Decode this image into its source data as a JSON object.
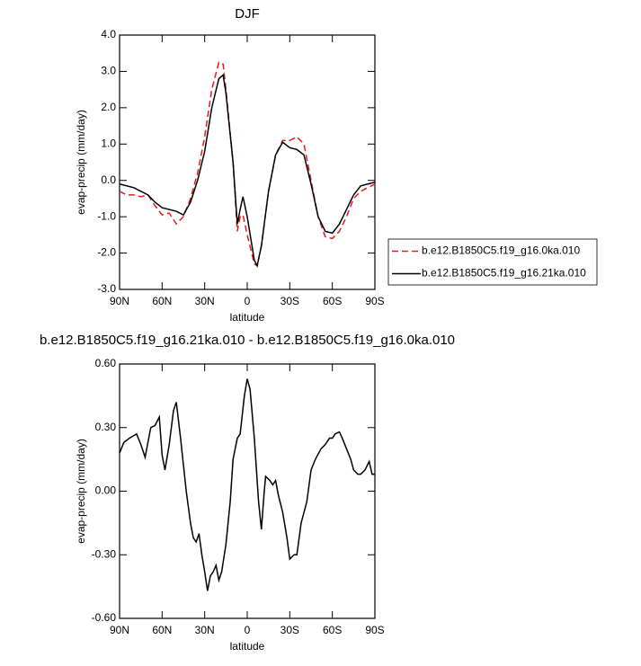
{
  "chart_data": [
    {
      "type": "line",
      "title": "DJF",
      "xlabel": "latitude",
      "ylabel": "evap-precip (mm/day)",
      "x": [
        90,
        85,
        80,
        75,
        70,
        65,
        60,
        55,
        50,
        45,
        40,
        35,
        30,
        25,
        20,
        17,
        15,
        10,
        7,
        5,
        3,
        0,
        -5,
        -7,
        -10,
        -15,
        -20,
        -25,
        -30,
        -35,
        -40,
        -45,
        -50,
        -55,
        -60,
        -65,
        -70,
        -75,
        -80,
        -85,
        -90
      ],
      "series": [
        {
          "name": "b.e12.B1850C5.f19_g16.0ka.010",
          "color": "#e41a1c",
          "dash": "dashed",
          "values": [
            -0.3,
            -0.4,
            -0.4,
            -0.45,
            -0.4,
            -0.7,
            -0.95,
            -0.9,
            -1.2,
            -1.0,
            -0.5,
            0.2,
            1.2,
            2.5,
            3.25,
            3.2,
            2.5,
            0.5,
            -1.4,
            -1.0,
            -0.95,
            -1.5,
            -2.3,
            -2.35,
            -1.8,
            -0.3,
            0.7,
            1.1,
            1.1,
            1.2,
            1.0,
            0.0,
            -1.0,
            -1.55,
            -1.6,
            -1.4,
            -1.0,
            -0.5,
            -0.3,
            -0.2,
            -0.1
          ]
        },
        {
          "name": "b.e12.B1850C5.f19_g16.21ka.010",
          "color": "#000000",
          "dash": "solid",
          "values": [
            -0.1,
            -0.15,
            -0.2,
            -0.3,
            -0.4,
            -0.6,
            -0.75,
            -0.8,
            -0.85,
            -0.95,
            -0.6,
            0.0,
            0.8,
            2.0,
            2.8,
            2.9,
            2.4,
            0.5,
            -1.2,
            -0.8,
            -0.45,
            -1.0,
            -2.2,
            -2.35,
            -1.8,
            -0.3,
            0.7,
            1.05,
            0.9,
            0.85,
            0.7,
            -0.1,
            -1.0,
            -1.4,
            -1.45,
            -1.2,
            -0.8,
            -0.4,
            -0.15,
            -0.1,
            -0.05
          ]
        }
      ],
      "xlim": [
        90,
        -90
      ],
      "xticks": [
        {
          "value": 90,
          "label": "90N"
        },
        {
          "value": 60,
          "label": "60N"
        },
        {
          "value": 30,
          "label": "30N"
        },
        0,
        {
          "value": -30,
          "label": "30S"
        },
        {
          "value": -60,
          "label": "60S"
        },
        {
          "value": -90,
          "label": "90S"
        }
      ],
      "ylim": [
        -3,
        4
      ],
      "yticks": [
        {
          "value": 4,
          "label": "4.0"
        },
        {
          "value": 3,
          "label": "3.0"
        },
        {
          "value": 2,
          "label": "2.0"
        },
        {
          "value": 1,
          "label": "1.0"
        },
        {
          "value": 0,
          "label": "0.0"
        },
        {
          "value": -1,
          "label": "-1.0"
        },
        {
          "value": -2,
          "label": "-2.0"
        },
        {
          "value": -3,
          "label": "-3.0"
        }
      ],
      "legend": "right"
    },
    {
      "type": "line",
      "title": "b.e12.B1850C5.f19_g16.21ka.010 - b.e12.B1850C5.f19_g16.0ka.010",
      "xlabel": "latitude",
      "ylabel": "evap-precip (mm/day)",
      "x": [
        90,
        87,
        83,
        78,
        75,
        72,
        68,
        65,
        62,
        60,
        58,
        55,
        52,
        50,
        47,
        43,
        40,
        38,
        36,
        34,
        32,
        30,
        28,
        26,
        24,
        22,
        20,
        18,
        15,
        12,
        10,
        7,
        5,
        2,
        0,
        -2,
        -5,
        -8,
        -10,
        -12,
        -13,
        -16,
        -18,
        -20,
        -22,
        -25,
        -28,
        -30,
        -33,
        -35,
        -38,
        -42,
        -45,
        -48,
        -52,
        -55,
        -58,
        -60,
        -62,
        -65,
        -67,
        -70,
        -73,
        -75,
        -78,
        -80,
        -83,
        -86,
        -88,
        -90
      ],
      "values": [
        0.18,
        0.23,
        0.25,
        0.27,
        0.22,
        0.16,
        0.3,
        0.31,
        0.35,
        0.17,
        0.1,
        0.22,
        0.38,
        0.42,
        0.25,
        0.0,
        -0.15,
        -0.22,
        -0.24,
        -0.2,
        -0.3,
        -0.38,
        -0.47,
        -0.4,
        -0.38,
        -0.35,
        -0.42,
        -0.38,
        -0.25,
        -0.05,
        0.15,
        0.25,
        0.27,
        0.45,
        0.53,
        0.48,
        0.25,
        -0.05,
        -0.18,
        0.0,
        0.07,
        0.05,
        0.03,
        0.05,
        -0.02,
        -0.1,
        -0.22,
        -0.32,
        -0.3,
        -0.3,
        -0.15,
        -0.05,
        0.1,
        0.15,
        0.2,
        0.22,
        0.25,
        0.25,
        0.27,
        0.28,
        0.25,
        0.2,
        0.15,
        0.1,
        0.08,
        0.08,
        0.1,
        0.14,
        0.08,
        0.08
      ],
      "color": "#000000",
      "xlim": [
        90,
        -90
      ],
      "xticks": [
        {
          "value": 90,
          "label": "90N"
        },
        {
          "value": 60,
          "label": "60N"
        },
        {
          "value": 30,
          "label": "30N"
        },
        0,
        {
          "value": -30,
          "label": "30S"
        },
        {
          "value": -60,
          "label": "60S"
        },
        {
          "value": -90,
          "label": "90S"
        }
      ],
      "ylim": [
        -0.6,
        0.6
      ],
      "yticks": [
        {
          "value": 0.6,
          "label": "0.60"
        },
        {
          "value": 0.3,
          "label": "0.30"
        },
        {
          "value": 0,
          "label": "0.00"
        },
        {
          "value": -0.3,
          "label": "-0.30"
        },
        {
          "value": -0.6,
          "label": "-0.60"
        }
      ]
    }
  ]
}
